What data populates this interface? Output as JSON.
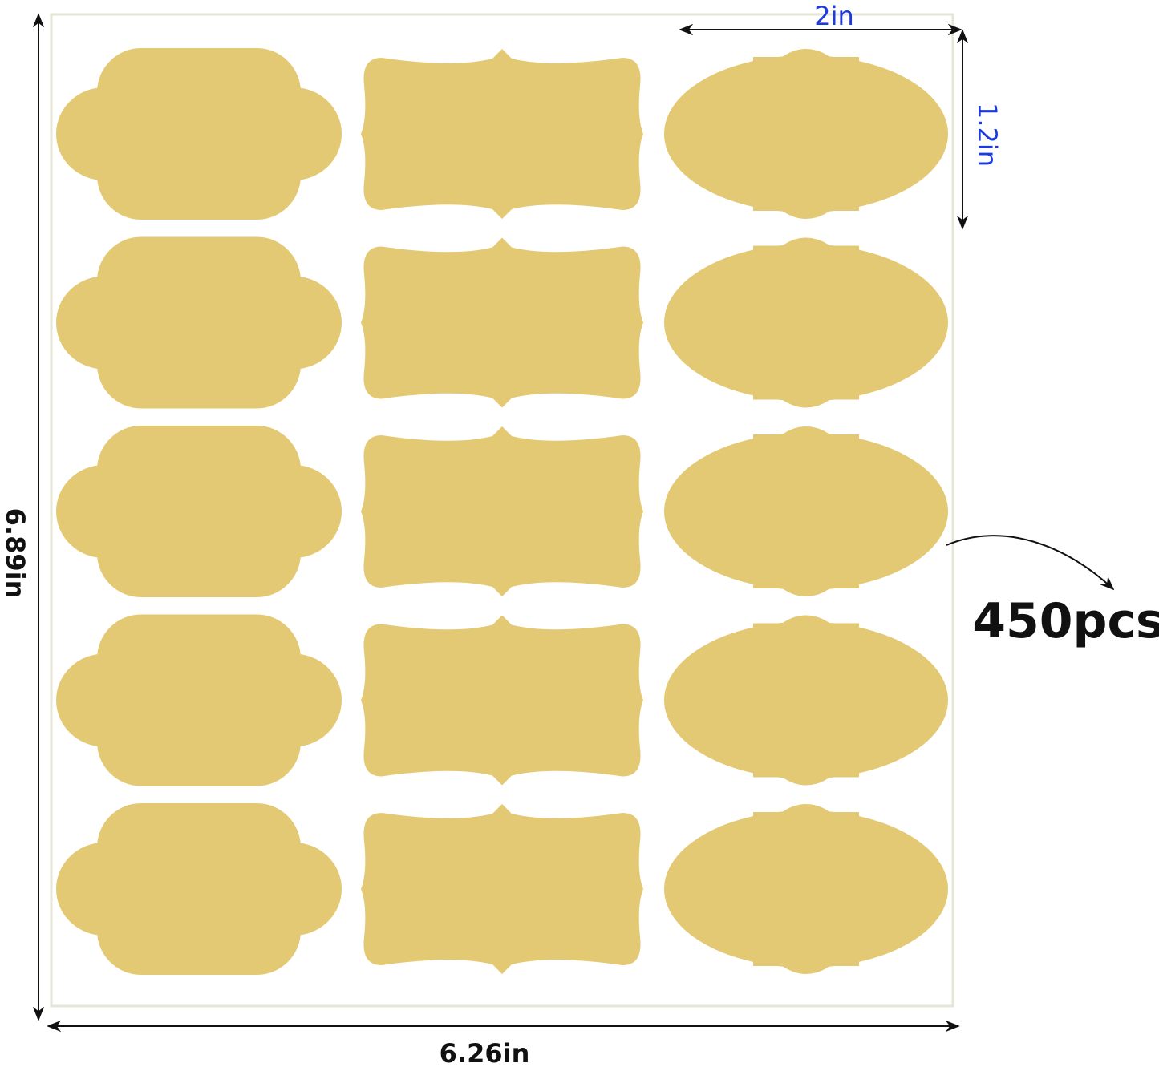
{
  "colors": {
    "label_fill": "#e4c975",
    "sheet_border": "#e6e6d6",
    "dimension_blue": "#1b3be0",
    "dimension_black": "#111111"
  },
  "sheet": {
    "rows": 5,
    "columns": [
      "cloud-label",
      "bracket-label",
      "ornate-oval-label"
    ]
  },
  "dimensions": {
    "label_width": "2in",
    "label_height": "1.2in",
    "sheet_height": "6.89in",
    "sheet_width": "6.26in"
  },
  "quantity": "450pcs"
}
